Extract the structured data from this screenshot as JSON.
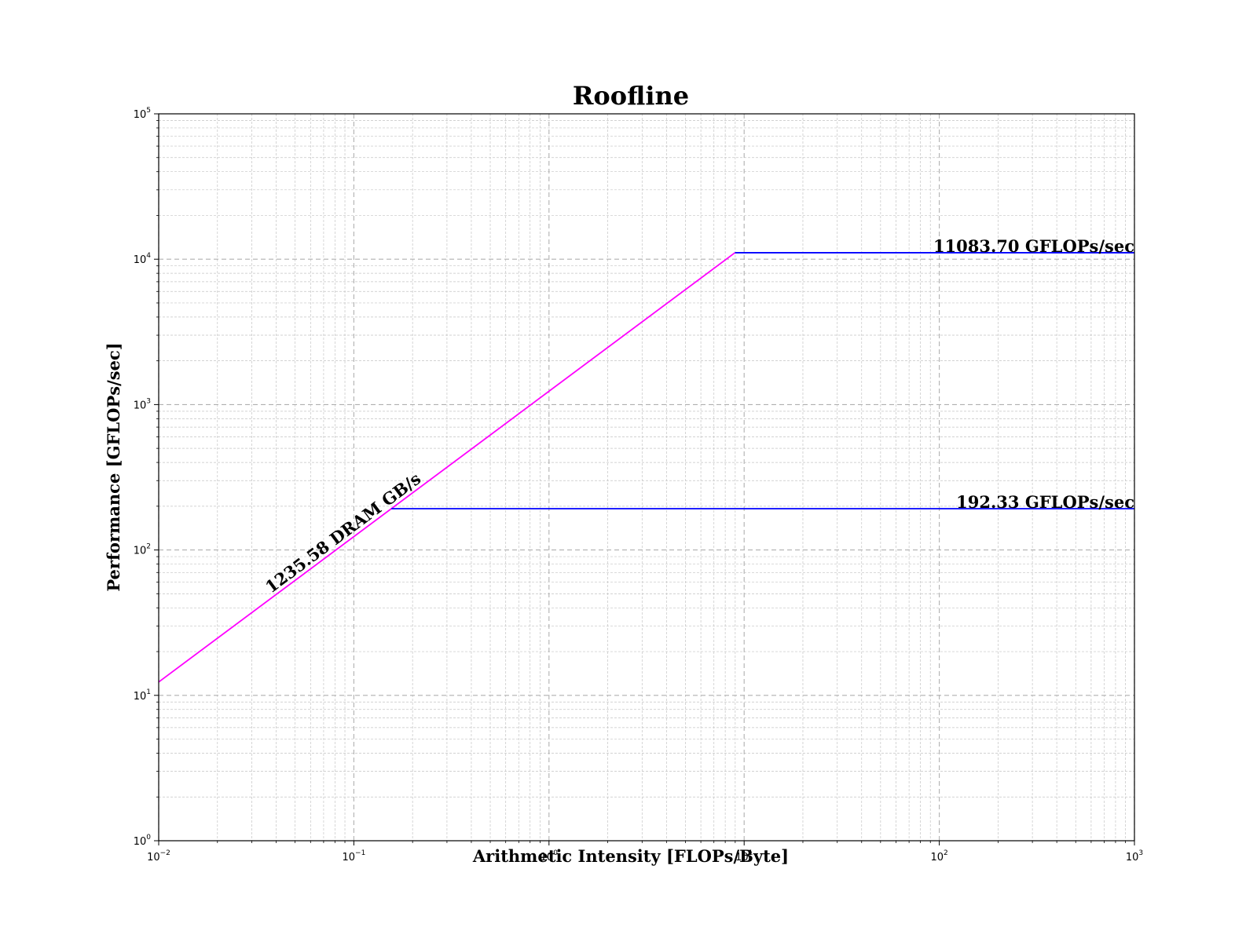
{
  "chart_data": {
    "type": "line",
    "title": "Roofline",
    "xlabel": "Arithmetic Intensity [FLOPs/Byte]",
    "ylabel": "Performance [GFLOPs/sec]",
    "xscale": "log",
    "yscale": "log",
    "xlim": [
      0.01,
      1000
    ],
    "ylim": [
      1,
      100000
    ],
    "grid": true,
    "x_ticks": [
      {
        "base": "10",
        "exp": "−2",
        "value": 0.01
      },
      {
        "base": "10",
        "exp": "−1",
        "value": 0.1
      },
      {
        "base": "10",
        "exp": "0",
        "value": 1
      },
      {
        "base": "10",
        "exp": "1",
        "value": 10
      },
      {
        "base": "10",
        "exp": "2",
        "value": 100
      },
      {
        "base": "10",
        "exp": "3",
        "value": 1000
      }
    ],
    "y_ticks": [
      {
        "base": "10",
        "exp": "0",
        "value": 1
      },
      {
        "base": "10",
        "exp": "1",
        "value": 10
      },
      {
        "base": "10",
        "exp": "2",
        "value": 100
      },
      {
        "base": "10",
        "exp": "3",
        "value": 1000
      },
      {
        "base": "10",
        "exp": "4",
        "value": 10000
      },
      {
        "base": "10",
        "exp": "5",
        "value": 100000
      }
    ],
    "series": [
      {
        "label": "1235.58 DRAM GB/s",
        "kind": "bandwidth",
        "color": "#ff00ff",
        "x": [
          0.01,
          8.97
        ],
        "y": [
          12.3558,
          11083.7
        ]
      },
      {
        "label": "11083.70 GFLOPs/sec",
        "kind": "compute",
        "color": "#0000ff",
        "x": [
          8.97,
          1000
        ],
        "y": [
          11083.7,
          11083.7
        ]
      },
      {
        "label": "192.33 GFLOPs/sec",
        "kind": "compute",
        "color": "#0000ff",
        "x": [
          0.1557,
          1000
        ],
        "y": [
          192.33,
          192.33
        ]
      }
    ]
  }
}
